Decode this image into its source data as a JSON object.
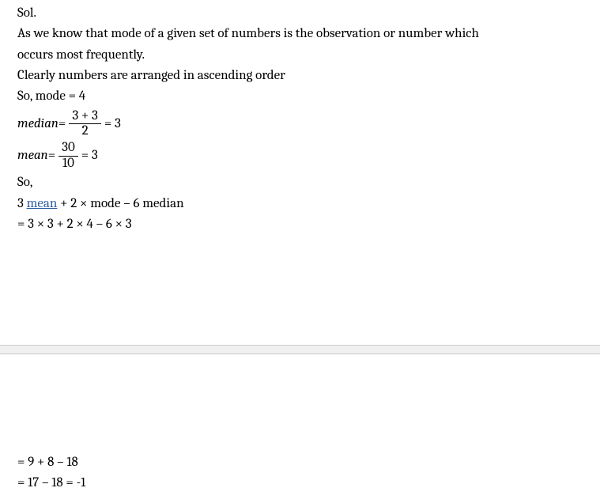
{
  "solution": {
    "label_sol": "Sol.",
    "intro_line1": "As we know that mode of a given set of numbers is the observation or number which",
    "intro_line2": "occurs most frequently.",
    "arranged": "Clearly numbers are arranged in ascending order",
    "mode_line": "So, mode = 4",
    "median": {
      "label": "median",
      "eq1": " = ",
      "num": "3 + 3",
      "den": "2",
      "eq2": " = 3"
    },
    "mean": {
      "label": "mean",
      "eq1": " = ",
      "num": "30",
      "den": "10",
      "eq2": " = 3"
    },
    "so": "So,",
    "expr_prefix": "3 ",
    "expr_mean": "mean",
    "expr_suffix": " + 2 × mode – 6 median",
    "calc1": "= 3 × 3 + 2 × 4 – 6 × 3",
    "calc2": "= 9 + 8 – 18",
    "calc3": "= 17 – 18 = -1"
  },
  "style": {
    "font_size_pt": 13,
    "text_color": "#000000",
    "background_color": "#ffffff",
    "separator_bg": "#f0f0f0",
    "separator_border": "#cfcfcf",
    "link_color": "#2e5fa3"
  }
}
